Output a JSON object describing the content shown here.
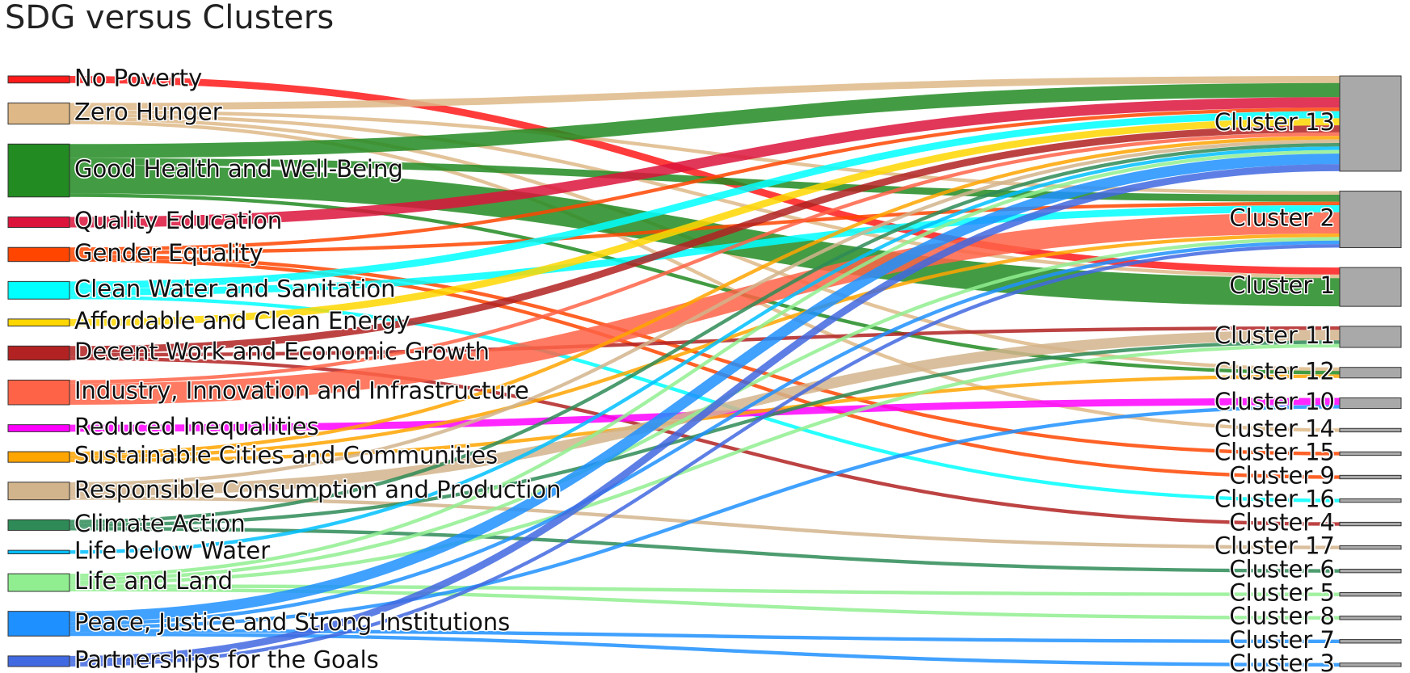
{
  "chart_data": {
    "type": "sankey",
    "title": "SDG versus Clusters",
    "sources": [
      {
        "name": "No Poverty",
        "color": "#ff1a1a"
      },
      {
        "name": "Zero Hunger",
        "color": "#deb887"
      },
      {
        "name": "Good Health and Well-Being",
        "color": "#228b22"
      },
      {
        "name": "Quality Education",
        "color": "#dc143c"
      },
      {
        "name": "Gender Equality",
        "color": "#ff4500"
      },
      {
        "name": "Clean Water and Sanitation",
        "color": "#00ffff"
      },
      {
        "name": "Affordable and Clean Energy",
        "color": "#ffd700"
      },
      {
        "name": "Decent Work and Economic Growth",
        "color": "#b22222"
      },
      {
        "name": "Industry, Innovation and Infrastructure",
        "color": "#ff6347"
      },
      {
        "name": "Reduced Inequalities",
        "color": "#ff00ff"
      },
      {
        "name": "Sustainable Cities and Communities",
        "color": "#ffa500"
      },
      {
        "name": "Responsible Consumption and Production",
        "color": "#d2b48c"
      },
      {
        "name": "Climate Action",
        "color": "#2e8b57"
      },
      {
        "name": "Life below Water",
        "color": "#00bfff"
      },
      {
        "name": "Life and Land",
        "color": "#90ee90"
      },
      {
        "name": "Peace, Justice and Strong Institutions",
        "color": "#1e90ff"
      },
      {
        "name": "Partnerships for the Goals",
        "color": "#4169e1"
      }
    ],
    "targets": [
      {
        "name": "Cluster 13"
      },
      {
        "name": "Cluster 2"
      },
      {
        "name": "Cluster 1"
      },
      {
        "name": "Cluster 11"
      },
      {
        "name": "Cluster 12"
      },
      {
        "name": "Cluster 10"
      },
      {
        "name": "Cluster 14"
      },
      {
        "name": "Cluster 15"
      },
      {
        "name": "Cluster 9"
      },
      {
        "name": "Cluster 16"
      },
      {
        "name": "Cluster 4"
      },
      {
        "name": "Cluster 17"
      },
      {
        "name": "Cluster 6"
      },
      {
        "name": "Cluster 5"
      },
      {
        "name": "Cluster 8"
      },
      {
        "name": "Cluster 7"
      },
      {
        "name": "Cluster 3"
      }
    ],
    "links": [
      {
        "source": "No Poverty",
        "target": "Cluster 1",
        "value": 2
      },
      {
        "source": "Zero Hunger",
        "target": "Cluster 13",
        "value": 2
      },
      {
        "source": "Zero Hunger",
        "target": "Cluster 2",
        "value": 1
      },
      {
        "source": "Zero Hunger",
        "target": "Cluster 1",
        "value": 1
      },
      {
        "source": "Zero Hunger",
        "target": "Cluster 12",
        "value": 1
      },
      {
        "source": "Zero Hunger",
        "target": "Cluster 14",
        "value": 1
      },
      {
        "source": "Good Health and Well-Being",
        "target": "Cluster 13",
        "value": 4
      },
      {
        "source": "Good Health and Well-Being",
        "target": "Cluster 2",
        "value": 2
      },
      {
        "source": "Good Health and Well-Being",
        "target": "Cluster 1",
        "value": 8
      },
      {
        "source": "Good Health and Well-Being",
        "target": "Cluster 12",
        "value": 1
      },
      {
        "source": "Quality Education",
        "target": "Cluster 13",
        "value": 3
      },
      {
        "source": "Gender Equality",
        "target": "Cluster 13",
        "value": 1
      },
      {
        "source": "Gender Equality",
        "target": "Cluster 2",
        "value": 1
      },
      {
        "source": "Gender Equality",
        "target": "Cluster 15",
        "value": 1
      },
      {
        "source": "Gender Equality",
        "target": "Cluster 9",
        "value": 1
      },
      {
        "source": "Clean Water and Sanitation",
        "target": "Cluster 13",
        "value": 2
      },
      {
        "source": "Clean Water and Sanitation",
        "target": "Cluster 2",
        "value": 2
      },
      {
        "source": "Clean Water and Sanitation",
        "target": "Cluster 16",
        "value": 1
      },
      {
        "source": "Affordable and Clean Energy",
        "target": "Cluster 13",
        "value": 2
      },
      {
        "source": "Decent Work and Economic Growth",
        "target": "Cluster 13",
        "value": 2
      },
      {
        "source": "Decent Work and Economic Growth",
        "target": "Cluster 11",
        "value": 1
      },
      {
        "source": "Decent Work and Economic Growth",
        "target": "Cluster 4",
        "value": 1
      },
      {
        "source": "Industry, Innovation and Infrastructure",
        "target": "Cluster 13",
        "value": 1
      },
      {
        "source": "Industry, Innovation and Infrastructure",
        "target": "Cluster 2",
        "value": 6
      },
      {
        "source": "Reduced Inequalities",
        "target": "Cluster 10",
        "value": 2
      },
      {
        "source": "Sustainable Cities and Communities",
        "target": "Cluster 13",
        "value": 1
      },
      {
        "source": "Sustainable Cities and Communities",
        "target": "Cluster 2",
        "value": 1
      },
      {
        "source": "Sustainable Cities and Communities",
        "target": "Cluster 12",
        "value": 1
      },
      {
        "source": "Responsible Consumption and Production",
        "target": "Cluster 13",
        "value": 1
      },
      {
        "source": "Responsible Consumption and Production",
        "target": "Cluster 11",
        "value": 3
      },
      {
        "source": "Responsible Consumption and Production",
        "target": "Cluster 17",
        "value": 1
      },
      {
        "source": "Climate Action",
        "target": "Cluster 13",
        "value": 1
      },
      {
        "source": "Climate Action",
        "target": "Cluster 11",
        "value": 1
      },
      {
        "source": "Climate Action",
        "target": "Cluster 6",
        "value": 1
      },
      {
        "source": "Life below Water",
        "target": "Cluster 13",
        "value": 1
      },
      {
        "source": "Life and Land",
        "target": "Cluster 13",
        "value": 1
      },
      {
        "source": "Life and Land",
        "target": "Cluster 2",
        "value": 1
      },
      {
        "source": "Life and Land",
        "target": "Cluster 11",
        "value": 1
      },
      {
        "source": "Life and Land",
        "target": "Cluster 5",
        "value": 1
      },
      {
        "source": "Life and Land",
        "target": "Cluster 8",
        "value": 1
      },
      {
        "source": "Peace, Justice and Strong Institutions",
        "target": "Cluster 13",
        "value": 3
      },
      {
        "source": "Peace, Justice and Strong Institutions",
        "target": "Cluster 2",
        "value": 1
      },
      {
        "source": "Peace, Justice and Strong Institutions",
        "target": "Cluster 10",
        "value": 1
      },
      {
        "source": "Peace, Justice and Strong Institutions",
        "target": "Cluster 7",
        "value": 1
      },
      {
        "source": "Peace, Justice and Strong Institutions",
        "target": "Cluster 3",
        "value": 1
      },
      {
        "source": "Partnerships for the Goals",
        "target": "Cluster 13",
        "value": 2
      },
      {
        "source": "Partnerships for the Goals",
        "target": "Cluster 2",
        "value": 1
      }
    ],
    "target_node_color": "#a9a9a9",
    "link_opacity": 0.85
  }
}
